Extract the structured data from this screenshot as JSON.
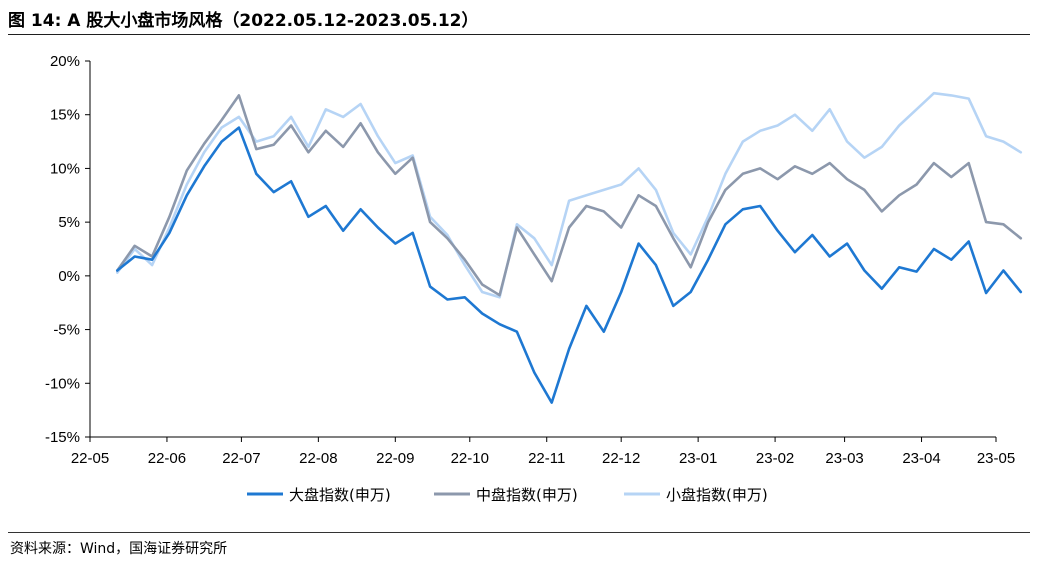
{
  "header": {
    "title": "图 14:  A 股大小盘市场风格（2022.05.12-2023.05.12）"
  },
  "footer": {
    "source": "资料来源：Wind，国海证券研究所"
  },
  "colors": {
    "large": "#1e78d2",
    "mid": "#8c98ac",
    "small": "#b6d4f5"
  },
  "chart_data": {
    "type": "line",
    "title": "",
    "xlabel": "",
    "ylabel": "",
    "ylim": [
      -15,
      20
    ],
    "yticks": [
      20,
      15,
      10,
      5,
      0,
      -5,
      -10,
      -15
    ],
    "ytick_labels": [
      "20%",
      "15%",
      "10%",
      "5%",
      "0%",
      "-5%",
      "-10%",
      "-15%"
    ],
    "xlim": [
      "2022-05-12",
      "2023-05-12"
    ],
    "xtick_labels": [
      "22-05",
      "22-06",
      "22-07",
      "22-08",
      "22-09",
      "22-10",
      "22-11",
      "22-12",
      "23-01",
      "23-02",
      "23-03",
      "23-04",
      "23-05"
    ],
    "xticks": [
      "2022-05-01",
      "2022-06-01",
      "2022-07-01",
      "2022-08-01",
      "2022-09-01",
      "2022-10-01",
      "2022-11-01",
      "2022-12-01",
      "2023-01-01",
      "2023-02-01",
      "2023-03-01",
      "2023-04-01",
      "2023-05-01"
    ],
    "grid": false,
    "legend": "bottom",
    "x": [
      "2022-05-12",
      "2022-05-19",
      "2022-05-26",
      "2022-06-02",
      "2022-06-09",
      "2022-06-16",
      "2022-06-23",
      "2022-06-30",
      "2022-07-07",
      "2022-07-14",
      "2022-07-21",
      "2022-07-28",
      "2022-08-04",
      "2022-08-11",
      "2022-08-18",
      "2022-08-25",
      "2022-09-01",
      "2022-09-08",
      "2022-09-15",
      "2022-09-22",
      "2022-09-29",
      "2022-10-06",
      "2022-10-13",
      "2022-10-20",
      "2022-10-27",
      "2022-11-03",
      "2022-11-10",
      "2022-11-17",
      "2022-11-24",
      "2022-12-01",
      "2022-12-08",
      "2022-12-15",
      "2022-12-22",
      "2022-12-29",
      "2023-01-05",
      "2023-01-12",
      "2023-01-19",
      "2023-01-26",
      "2023-02-02",
      "2023-02-09",
      "2023-02-16",
      "2023-02-23",
      "2023-03-02",
      "2023-03-09",
      "2023-03-16",
      "2023-03-23",
      "2023-03-30",
      "2023-04-06",
      "2023-04-13",
      "2023-04-20",
      "2023-04-27",
      "2023-05-04",
      "2023-05-11"
    ],
    "series": [
      {
        "name": "大盘指数(申万)",
        "color": "#1e78d2",
        "values": [
          0.5,
          1.8,
          1.5,
          4.0,
          7.5,
          10.2,
          12.5,
          13.8,
          9.5,
          7.8,
          8.8,
          5.5,
          6.5,
          4.2,
          6.2,
          4.5,
          3.0,
          4.0,
          -1.0,
          -2.2,
          -2.0,
          -3.5,
          -4.5,
          -5.2,
          -9.0,
          -11.8,
          -6.8,
          -2.8,
          -5.2,
          -1.5,
          3.0,
          1.0,
          -2.8,
          -1.5,
          1.5,
          4.8,
          6.2,
          6.5,
          4.2,
          2.2,
          3.8,
          1.8,
          3.0,
          0.5,
          -1.2,
          0.8,
          0.4,
          2.5,
          1.5,
          3.2,
          -1.6,
          0.5,
          -1.5
        ]
      },
      {
        "name": "中盘指数(申万)",
        "color": "#8c98ac",
        "values": [
          0.5,
          2.8,
          1.8,
          5.5,
          9.8,
          12.3,
          14.5,
          16.8,
          11.8,
          12.2,
          14.0,
          11.5,
          13.5,
          12.0,
          14.2,
          11.5,
          9.5,
          11.0,
          5.0,
          3.5,
          1.5,
          -0.8,
          -1.8,
          4.5,
          2.0,
          -0.5,
          4.5,
          6.5,
          6.0,
          4.5,
          7.5,
          6.5,
          3.5,
          0.8,
          5.0,
          8.0,
          9.5,
          10.0,
          9.0,
          10.2,
          9.5,
          10.5,
          9.0,
          8.0,
          6.0,
          7.5,
          8.5,
          10.5,
          9.2,
          10.5,
          5.0,
          4.8,
          3.5
        ]
      },
      {
        "name": "小盘指数(申万)",
        "color": "#b6d4f5",
        "values": [
          0.3,
          2.5,
          1.0,
          4.5,
          8.5,
          11.5,
          13.8,
          14.8,
          12.5,
          13.0,
          14.8,
          12.0,
          15.5,
          14.8,
          16.0,
          13.0,
          10.5,
          11.2,
          5.5,
          3.8,
          1.0,
          -1.5,
          -2.0,
          4.8,
          3.5,
          1.0,
          7.0,
          7.5,
          8.0,
          8.5,
          10.0,
          8.0,
          4.0,
          2.0,
          5.5,
          9.5,
          12.5,
          13.5,
          14.0,
          15.0,
          13.5,
          15.5,
          12.5,
          11.0,
          12.0,
          14.0,
          15.5,
          17.0,
          16.8,
          16.5,
          13.0,
          12.5,
          11.5
        ]
      }
    ]
  }
}
